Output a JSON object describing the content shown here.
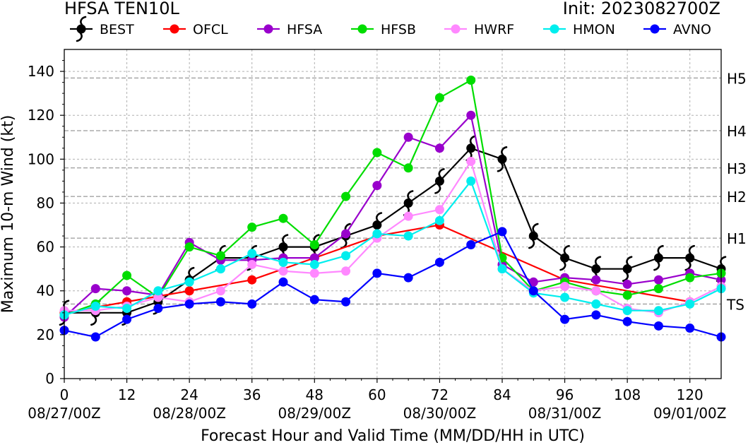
{
  "title_left": "HFSA TEN10L",
  "title_right": "Init: 2023082700Z",
  "chart_data": {
    "type": "line",
    "xlabel": "Forecast Hour and Valid Time (MM/DD/HH in UTC)",
    "ylabel": "Maximum 10-m Wind (kt)",
    "xlim": [
      0,
      126
    ],
    "ylim": [
      0,
      150
    ],
    "x_ticks": [
      0,
      12,
      24,
      36,
      48,
      60,
      72,
      84,
      96,
      108,
      120
    ],
    "x_date_labels": [
      {
        "x": 0,
        "label": "08/27/00Z"
      },
      {
        "x": 24,
        "label": "08/28/00Z"
      },
      {
        "x": 48,
        "label": "08/29/00Z"
      },
      {
        "x": 72,
        "label": "08/30/00Z"
      },
      {
        "x": 96,
        "label": "08/31/00Z"
      },
      {
        "x": 120,
        "label": "09/01/00Z"
      }
    ],
    "y_ticks": [
      0,
      20,
      40,
      60,
      80,
      100,
      120,
      140
    ],
    "category_lines": [
      {
        "label": "TS",
        "value": 34
      },
      {
        "label": "H1",
        "value": 64
      },
      {
        "label": "H2",
        "value": 83
      },
      {
        "label": "H3",
        "value": 96
      },
      {
        "label": "H4",
        "value": 113
      },
      {
        "label": "H5",
        "value": 137
      }
    ],
    "grid": true,
    "legend_position": "top",
    "series": [
      {
        "name": "BEST",
        "color": "#000000",
        "marker": "hurricane",
        "x": [
          0,
          6,
          12,
          18,
          24,
          30,
          36,
          42,
          48,
          54,
          60,
          66,
          72,
          78,
          84,
          90,
          96,
          102,
          108,
          114,
          120,
          126
        ],
        "y": [
          30,
          30,
          30,
          35,
          45,
          55,
          55,
          60,
          60,
          65,
          70,
          80,
          90,
          105,
          100,
          65,
          55,
          50,
          50,
          55,
          55,
          50
        ]
      },
      {
        "name": "OFCL",
        "color": "#ff0000",
        "marker": "circle",
        "x": [
          0,
          12,
          24,
          36,
          48,
          60,
          72,
          96,
          120
        ],
        "y": [
          30,
          35,
          40,
          45,
          55,
          65,
          70,
          45,
          35
        ]
      },
      {
        "name": "HFSA",
        "color": "#9900cc",
        "marker": "circle",
        "x": [
          0,
          6,
          12,
          18,
          24,
          30,
          36,
          42,
          48,
          54,
          60,
          66,
          72,
          78,
          84,
          90,
          96,
          102,
          108,
          114,
          120,
          126
        ],
        "y": [
          28,
          41,
          40,
          38,
          62,
          54,
          54,
          55,
          55,
          66,
          88,
          110,
          105,
          120,
          52,
          44,
          46,
          45,
          43,
          45,
          48,
          45
        ]
      },
      {
        "name": "HFSB",
        "color": "#00dd00",
        "marker": "circle",
        "x": [
          0,
          6,
          12,
          18,
          24,
          30,
          36,
          42,
          48,
          54,
          60,
          66,
          72,
          78,
          84,
          90,
          96,
          102,
          108,
          114,
          120,
          126
        ],
        "y": [
          29,
          34,
          47,
          37,
          60,
          56,
          69,
          73,
          61,
          83,
          103,
          96,
          128,
          136,
          55,
          40,
          44,
          40,
          38,
          41,
          46,
          48
        ]
      },
      {
        "name": "HWRF",
        "color": "#ff88ff",
        "marker": "circle",
        "x": [
          0,
          6,
          12,
          18,
          24,
          30,
          36,
          42,
          48,
          54,
          60,
          66,
          72,
          78,
          84,
          90,
          96,
          102,
          108,
          114,
          120,
          126
        ],
        "y": [
          31,
          31,
          33,
          37,
          35,
          40,
          52,
          49,
          48,
          49,
          64,
          74,
          77,
          99,
          50,
          40,
          42,
          40,
          32,
          30,
          35,
          42
        ]
      },
      {
        "name": "HMON",
        "color": "#00eeee",
        "marker": "circle",
        "x": [
          0,
          6,
          12,
          18,
          24,
          30,
          36,
          42,
          48,
          54,
          60,
          66,
          72,
          78,
          84,
          90,
          96,
          102,
          108,
          114,
          120,
          126
        ],
        "y": [
          29,
          33,
          32,
          40,
          44,
          50,
          57,
          53,
          52,
          56,
          66,
          65,
          72,
          90,
          50,
          39,
          37,
          34,
          31,
          31,
          34,
          41
        ]
      },
      {
        "name": "AVNO",
        "color": "#0000ff",
        "marker": "circle",
        "x": [
          0,
          6,
          12,
          18,
          24,
          30,
          36,
          42,
          48,
          54,
          60,
          66,
          72,
          78,
          84,
          90,
          96,
          102,
          108,
          114,
          120,
          126
        ],
        "y": [
          22,
          19,
          27,
          32,
          34,
          35,
          34,
          44,
          36,
          35,
          48,
          46,
          53,
          61,
          67,
          40,
          27,
          29,
          26,
          24,
          23,
          19
        ]
      }
    ]
  }
}
